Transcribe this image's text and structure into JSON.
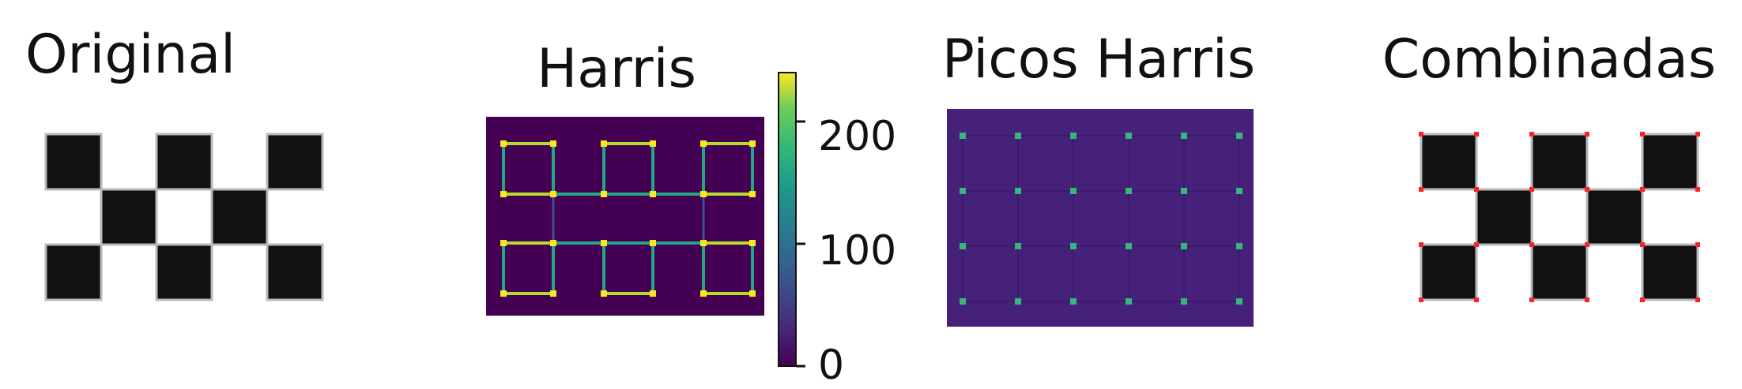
{
  "chart_data": [
    {
      "type": "heatmap",
      "title": "Original",
      "description_grid": [
        [
          1,
          0,
          1,
          0,
          1
        ],
        [
          0,
          1,
          0,
          1,
          0
        ],
        [
          1,
          0,
          1,
          0,
          1
        ]
      ],
      "colors": {
        "dark": "#111111",
        "edge": "#b8b8b8",
        "background": "#ffffff"
      }
    },
    {
      "type": "heatmap",
      "title": "Harris",
      "colormap": "viridis",
      "colorbar": {
        "ticks": [
          0,
          100,
          200
        ],
        "tick_labels": [
          "0",
          "100",
          "200"
        ],
        "range": [
          0,
          240
        ]
      },
      "grid": [
        [
          1,
          1,
          1,
          1,
          1
        ],
        [
          1,
          1,
          1,
          1,
          1
        ],
        [
          1,
          1,
          1,
          1,
          1
        ]
      ],
      "colors": {
        "background": "#440154",
        "edge": "#22a884",
        "corner": "#fde725",
        "bright_edge": "#b5de2b"
      }
    },
    {
      "type": "heatmap",
      "title": "Picos Harris",
      "colors": {
        "background": "#46217a",
        "peak": "#35b779",
        "faint_line": "#3d1a6e"
      }
    },
    {
      "type": "heatmap",
      "title": "Combinadas",
      "description_grid": [
        [
          1,
          0,
          1,
          0,
          1
        ],
        [
          0,
          1,
          0,
          1,
          0
        ],
        [
          1,
          0,
          1,
          0,
          1
        ]
      ],
      "colors": {
        "dark": "#111111",
        "edge": "#b8b8b8",
        "corner": "#ff2020"
      }
    }
  ]
}
